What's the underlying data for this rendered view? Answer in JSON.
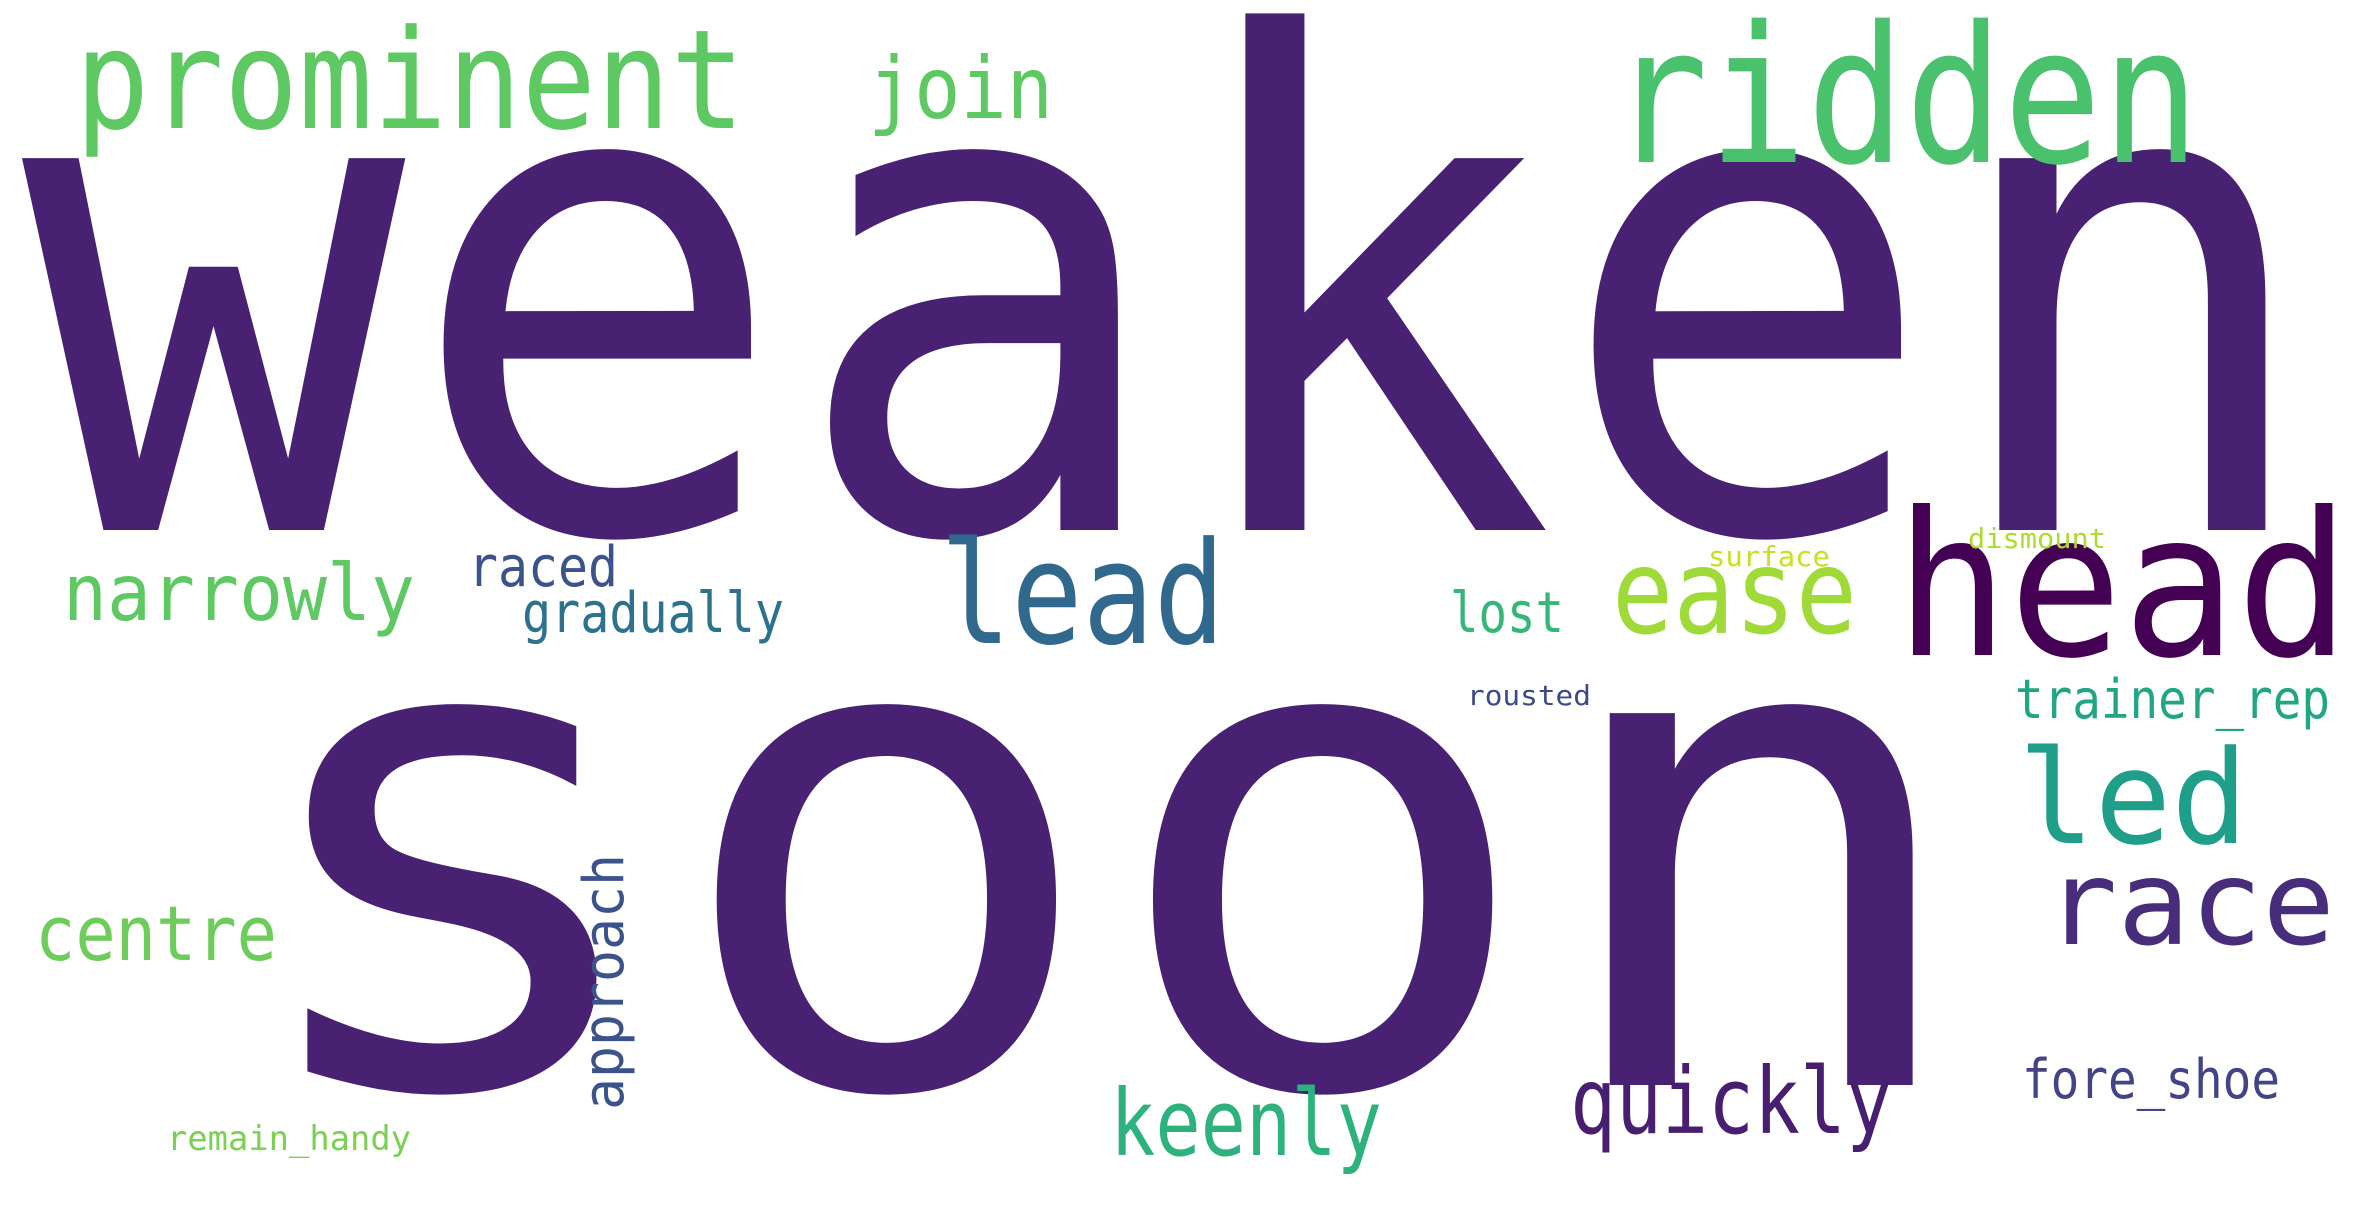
{
  "word_cloud": {
    "words": [
      {
        "key": "weaken",
        "text": "weaken",
        "color": "#482173"
      },
      {
        "key": "soon",
        "text": "soon",
        "color": "#482173"
      },
      {
        "key": "prominent",
        "text": "prominent",
        "color": "#5ec962"
      },
      {
        "key": "ridden",
        "text": "ridden",
        "color": "#4ac16d"
      },
      {
        "key": "join",
        "text": "join",
        "color": "#5ec962"
      },
      {
        "key": "head",
        "text": "head",
        "color": "#440154"
      },
      {
        "key": "lead",
        "text": "lead",
        "color": "#31688e"
      },
      {
        "key": "ease",
        "text": "ease",
        "color": "#a0da39"
      },
      {
        "key": "narrowly",
        "text": "narrowly",
        "color": "#5ec962"
      },
      {
        "key": "raced",
        "text": "raced",
        "color": "#3b528b"
      },
      {
        "key": "gradually",
        "text": "gradually",
        "color": "#2c728e"
      },
      {
        "key": "lost",
        "text": "lost",
        "color": "#35b779"
      },
      {
        "key": "surface",
        "text": "surface",
        "color": "#c8e020"
      },
      {
        "key": "dismount",
        "text": "dismount",
        "color": "#addc30"
      },
      {
        "key": "rousted",
        "text": "rousted",
        "color": "#3e4989"
      },
      {
        "key": "trainer_rep",
        "text": "trainer_rep",
        "color": "#21a685"
      },
      {
        "key": "led",
        "text": "led",
        "color": "#1f9e89"
      },
      {
        "key": "race",
        "text": "race",
        "color": "#472d7b"
      },
      {
        "key": "centre",
        "text": "centre",
        "color": "#6ccd5a"
      },
      {
        "key": "approach",
        "text": "approach",
        "color": "#3b528b"
      },
      {
        "key": "keenly",
        "text": "keenly",
        "color": "#2db27d"
      },
      {
        "key": "quickly",
        "text": "quickly",
        "color": "#481f70"
      },
      {
        "key": "fore_shoe",
        "text": "fore_shoe",
        "color": "#414487"
      },
      {
        "key": "remain_handy",
        "text": "remain_handy",
        "color": "#7ad151"
      }
    ]
  }
}
